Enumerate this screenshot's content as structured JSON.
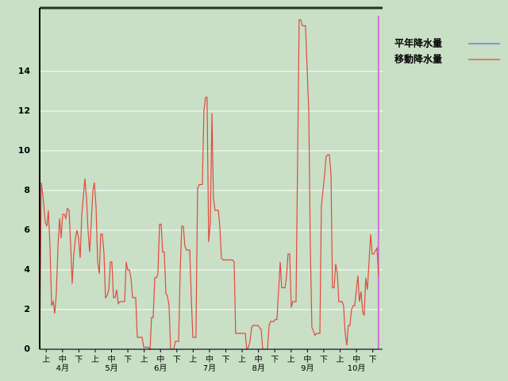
{
  "chart_data": {
    "type": "line",
    "xlim": [
      0,
      210
    ],
    "ylim": [
      0,
      17.2
    ],
    "yticks": [
      0,
      2,
      4,
      6,
      8,
      10,
      12,
      14
    ],
    "xticks": [
      {
        "value": 4,
        "label": "上"
      },
      {
        "value": 14,
        "label": "中"
      },
      {
        "value": 24,
        "label": "下"
      },
      {
        "value": 34,
        "label": "上"
      },
      {
        "value": 44,
        "label": "中"
      },
      {
        "value": 54,
        "label": "下"
      },
      {
        "value": 64,
        "label": "上"
      },
      {
        "value": 74,
        "label": "中"
      },
      {
        "value": 84,
        "label": "下"
      },
      {
        "value": 94,
        "label": "上"
      },
      {
        "value": 104,
        "label": "中"
      },
      {
        "value": 114,
        "label": "下"
      },
      {
        "value": 124,
        "label": "上"
      },
      {
        "value": 134,
        "label": "中"
      },
      {
        "value": 144,
        "label": "下"
      },
      {
        "value": 154,
        "label": "上"
      },
      {
        "value": 164,
        "label": "中"
      },
      {
        "value": 174,
        "label": "下"
      },
      {
        "value": 184,
        "label": "上"
      },
      {
        "value": 194,
        "label": "中"
      },
      {
        "value": 204,
        "label": "下"
      }
    ],
    "month_labels": [
      {
        "value": 14,
        "label": "4月"
      },
      {
        "value": 44,
        "label": "5月"
      },
      {
        "value": 74,
        "label": "6月"
      },
      {
        "value": 104,
        "label": "7月"
      },
      {
        "value": 134,
        "label": "8月"
      },
      {
        "value": 164,
        "label": "9月"
      },
      {
        "value": 194,
        "label": "10月"
      }
    ],
    "grid": true,
    "marker_x": 207.5,
    "marker_color": "#d070d8",
    "series": [
      {
        "name": "平年降水量",
        "color": "#5070e0",
        "x": [
          0,
          207.5
        ],
        "values": [
          0,
          0
        ]
      },
      {
        "name": "移動降水量",
        "color": "#e04a3c",
        "x": [
          0,
          1.0,
          2.4,
          3.4,
          4.4,
          5.3,
          6.3,
          7.3,
          8.3,
          9.2,
          10.2,
          11.2,
          12.2,
          13.1,
          14.1,
          15.1,
          16.0,
          17.0,
          18.0,
          19.0,
          19.9,
          20.9,
          21.9,
          22.8,
          23.8,
          24.8,
          25.8,
          27.7,
          28.7,
          29.6,
          30.6,
          31.6,
          32.6,
          33.5,
          34.5,
          35.5,
          36.5,
          37.4,
          38.4,
          39.4,
          40.3,
          41.3,
          42.3,
          43.3,
          44.2,
          45.2,
          46.2,
          47.1,
          48.1,
          49.1,
          51.0,
          52.0,
          53.0,
          53.9,
          54.9,
          55.9,
          56.9,
          58.8,
          59.8,
          62.7,
          63.7,
          66.6,
          67.6,
          68.5,
          69.5,
          70.5,
          71.4,
          72.4,
          73.4,
          74.4,
          75.3,
          76.3,
          77.3,
          78.2,
          79.2,
          80.2,
          82.1,
          83.1,
          85.1,
          86.0,
          87.0,
          88.0,
          88.9,
          89.9,
          91.9,
          92.8,
          93.8,
          95.7,
          96.7,
          97.7,
          99.6,
          100.6,
          101.6,
          102.5,
          103.5,
          104.5,
          105.5,
          106.4,
          107.4,
          109.4,
          110.3,
          111.3,
          112.3,
          113.2,
          118.1,
          119.1,
          120.0,
          125.9,
          126.8,
          127.8,
          128.8,
          129.8,
          130.7,
          133.7,
          134.6,
          135.6,
          136.6,
          139.5,
          140.5,
          141.4,
          143.4,
          144.3,
          145.3,
          147.3,
          148.2,
          150.2,
          151.1,
          152.1,
          153.1,
          154.1,
          155.0,
          157.0,
          158.9,
          159.9,
          160.9,
          162.8,
          164.8,
          165.7,
          166.7,
          167.7,
          168.6,
          169.6,
          171.6,
          172.5,
          173.5,
          174.5,
          175.4,
          176.4,
          177.4,
          178.4,
          179.3,
          180.3,
          181.3,
          182.3,
          183.2,
          185.2,
          186.1,
          187.1,
          188.1,
          189.0,
          190.0,
          191.0,
          192.0,
          192.9,
          194.9,
          195.8,
          196.8,
          197.8,
          198.7,
          199.7,
          200.7,
          202.7,
          203.6,
          204.6,
          206.6,
          207.5
        ],
        "values": [
          0,
          8.4,
          7.4,
          6.4,
          6.2,
          7.0,
          5.2,
          2.2,
          2.4,
          1.8,
          2.8,
          5.2,
          6.6,
          5.6,
          6.8,
          6.8,
          6.6,
          7.1,
          7.0,
          5.2,
          3.3,
          4.8,
          5.6,
          6.0,
          5.6,
          4.6,
          6.8,
          8.6,
          7.6,
          6.0,
          4.9,
          6.4,
          8.0,
          8.4,
          7.2,
          4.4,
          3.8,
          5.8,
          5.8,
          4.8,
          2.6,
          2.7,
          3.0,
          4.4,
          4.4,
          2.6,
          2.6,
          3.0,
          2.3,
          2.4,
          2.4,
          2.4,
          4.4,
          4.0,
          4.0,
          3.6,
          2.6,
          2.6,
          0.6,
          0.6,
          0.1,
          0.1,
          0,
          1.6,
          1.6,
          3.6,
          3.6,
          3.8,
          6.3,
          6.3,
          4.9,
          4.9,
          2.8,
          2.7,
          2.2,
          0,
          0,
          0.4,
          0.4,
          3.8,
          6.2,
          6.2,
          5.2,
          5.0,
          5.0,
          2.7,
          0.6,
          0.6,
          8.1,
          8.3,
          8.3,
          12.0,
          12.7,
          12.7,
          5.4,
          6.4,
          11.9,
          7.6,
          7.0,
          7.0,
          6.2,
          4.6,
          4.5,
          4.5,
          4.5,
          4.4,
          0.8,
          0.8,
          0,
          0.1,
          0.4,
          1.1,
          1.2,
          1.2,
          1.1,
          1.0,
          0,
          0,
          1.2,
          1.4,
          1.4,
          1.5,
          1.5,
          4.4,
          3.1,
          3.1,
          3.6,
          4.8,
          4.8,
          2.1,
          2.4,
          2.4,
          16.6,
          16.6,
          16.3,
          16.3,
          12.0,
          5.4,
          1.1,
          0.9,
          0.7,
          0.8,
          0.8,
          7.2,
          8.0,
          8.8,
          9.7,
          9.8,
          9.8,
          8.8,
          3.1,
          3.1,
          4.3,
          3.8,
          2.4,
          2.4,
          2.2,
          0.8,
          0.2,
          1.2,
          1.2,
          2.0,
          2.2,
          2.2,
          3.7,
          2.4,
          2.9,
          1.9,
          1.7,
          3.6,
          3.0,
          5.8,
          4.8,
          4.8,
          5.1,
          3.7
        ]
      }
    ]
  }
}
